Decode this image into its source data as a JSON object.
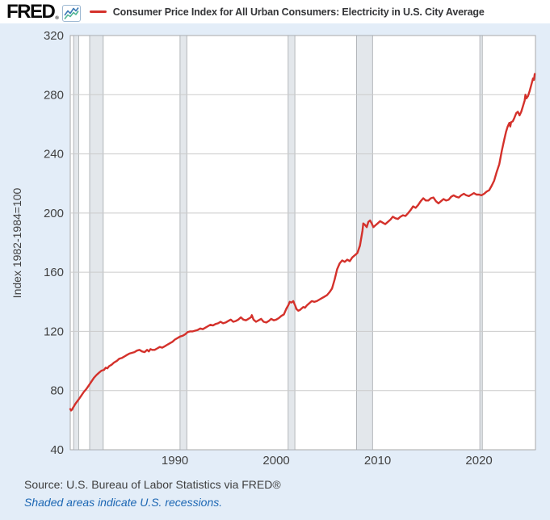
{
  "header": {
    "logo_text": "FRED",
    "logo_reg": "®",
    "series_title": "Consumer Price Index for All Urban Consumers: Electricity in U.S. City Average"
  },
  "footer": {
    "source": "Source: U.S. Bureau of Labor Statistics via FRED®",
    "recession_note": "Shaded areas indicate U.S. recessions."
  },
  "colors": {
    "background": "#e3edf8",
    "header_background": "#ffffff",
    "line_red": "#d4312b",
    "plot_border": "#a9a9a9",
    "gridline": "#cbcbcb",
    "recession_fill": "#e3e7eb",
    "recession_edge": "#a4a8ac",
    "note_blue": "#1b66b3",
    "icon_blue": "#3d7ab5",
    "icon_green": "#52b695"
  },
  "chart_data": {
    "type": "line",
    "title": "Consumer Price Index for All Urban Consumers: Electricity in U.S. City Average",
    "xlabel": "",
    "ylabel": "Index 1982-1984=100",
    "x_ticks": [
      1990,
      2000,
      2010,
      2020
    ],
    "y_ticks": [
      40,
      80,
      120,
      160,
      200,
      240,
      280,
      320
    ],
    "x_range": [
      1979.67,
      2025.57
    ],
    "y_range": [
      40,
      320
    ],
    "grid": "horizontal-only",
    "legend_position": "top",
    "recessions": [
      [
        1980.0,
        1980.5
      ],
      [
        1981.58,
        1982.92
      ],
      [
        1990.5,
        1991.17
      ],
      [
        2001.17,
        2001.83
      ],
      [
        2007.92,
        2009.5
      ],
      [
        2020.08,
        2020.33
      ]
    ],
    "series": [
      {
        "name": "Consumer Price Index for All Urban Consumers: Electricity in U.S. City Average",
        "color": "#d4312b",
        "points": [
          [
            1979.67,
            67.5
          ],
          [
            1979.75,
            66.5
          ],
          [
            1979.83,
            67
          ],
          [
            1980,
            69
          ],
          [
            1980.17,
            71
          ],
          [
            1980.33,
            72.5
          ],
          [
            1980.5,
            74
          ],
          [
            1980.75,
            76.5
          ],
          [
            1981,
            79
          ],
          [
            1981.25,
            81
          ],
          [
            1981.5,
            83.5
          ],
          [
            1981.75,
            86
          ],
          [
            1982,
            88.5
          ],
          [
            1982.25,
            90.5
          ],
          [
            1982.5,
            92
          ],
          [
            1982.75,
            93.5
          ],
          [
            1983,
            94
          ],
          [
            1983.17,
            95.5
          ],
          [
            1983.33,
            95
          ],
          [
            1983.5,
            96.5
          ],
          [
            1983.75,
            97.5
          ],
          [
            1984,
            99
          ],
          [
            1984.25,
            100
          ],
          [
            1984.5,
            101.5
          ],
          [
            1984.75,
            102
          ],
          [
            1985,
            103
          ],
          [
            1985.25,
            104
          ],
          [
            1985.5,
            105
          ],
          [
            1985.75,
            105.5
          ],
          [
            1986,
            106
          ],
          [
            1986.25,
            107
          ],
          [
            1986.5,
            107.5
          ],
          [
            1986.75,
            106.5
          ],
          [
            1987,
            106
          ],
          [
            1987.25,
            107.5
          ],
          [
            1987.42,
            106.5
          ],
          [
            1987.58,
            108
          ],
          [
            1987.75,
            107.5
          ],
          [
            1988,
            107.5
          ],
          [
            1988.25,
            108.5
          ],
          [
            1988.5,
            109.5
          ],
          [
            1988.75,
            109
          ],
          [
            1989,
            110
          ],
          [
            1989.25,
            111
          ],
          [
            1989.5,
            112
          ],
          [
            1989.75,
            113
          ],
          [
            1990,
            114.5
          ],
          [
            1990.25,
            115.5
          ],
          [
            1990.5,
            116.5
          ],
          [
            1990.75,
            117
          ],
          [
            1991,
            118
          ],
          [
            1991.25,
            119.5
          ],
          [
            1991.5,
            120
          ],
          [
            1991.75,
            120
          ],
          [
            1992,
            120.5
          ],
          [
            1992.25,
            121
          ],
          [
            1992.5,
            122
          ],
          [
            1992.75,
            121.5
          ],
          [
            1993,
            122.5
          ],
          [
            1993.25,
            123.5
          ],
          [
            1993.5,
            124.5
          ],
          [
            1993.75,
            124
          ],
          [
            1994,
            125
          ],
          [
            1994.25,
            125.5
          ],
          [
            1994.5,
            126.5
          ],
          [
            1994.75,
            125.5
          ],
          [
            1995,
            126
          ],
          [
            1995.25,
            127
          ],
          [
            1995.5,
            128
          ],
          [
            1995.75,
            126.5
          ],
          [
            1996,
            127
          ],
          [
            1996.25,
            128
          ],
          [
            1996.5,
            129.5
          ],
          [
            1996.75,
            128
          ],
          [
            1997,
            127.5
          ],
          [
            1997.25,
            128.5
          ],
          [
            1997.5,
            129.5
          ],
          [
            1997.58,
            131
          ],
          [
            1997.75,
            128
          ],
          [
            1998,
            126.5
          ],
          [
            1998.25,
            127.5
          ],
          [
            1998.5,
            128.5
          ],
          [
            1998.75,
            126.5
          ],
          [
            1999,
            126
          ],
          [
            1999.25,
            127
          ],
          [
            1999.5,
            128.5
          ],
          [
            1999.75,
            127.5
          ],
          [
            2000,
            128
          ],
          [
            2000.25,
            129
          ],
          [
            2000.5,
            130.5
          ],
          [
            2000.75,
            131.5
          ],
          [
            2001,
            135.5
          ],
          [
            2001.17,
            137.5
          ],
          [
            2001.33,
            140
          ],
          [
            2001.5,
            139.5
          ],
          [
            2001.67,
            140.5
          ],
          [
            2001.83,
            138
          ],
          [
            2002,
            135
          ],
          [
            2002.17,
            134
          ],
          [
            2002.33,
            134.5
          ],
          [
            2002.5,
            135.5
          ],
          [
            2002.67,
            136.5
          ],
          [
            2002.83,
            136
          ],
          [
            2003,
            137.5
          ],
          [
            2003.25,
            139
          ],
          [
            2003.5,
            140.5
          ],
          [
            2003.75,
            140
          ],
          [
            2004,
            140.5
          ],
          [
            2004.25,
            141.5
          ],
          [
            2004.5,
            142.5
          ],
          [
            2004.75,
            143.5
          ],
          [
            2005,
            144.5
          ],
          [
            2005.25,
            146.5
          ],
          [
            2005.5,
            149
          ],
          [
            2005.75,
            155
          ],
          [
            2006,
            162
          ],
          [
            2006.25,
            166
          ],
          [
            2006.5,
            168
          ],
          [
            2006.75,
            167
          ],
          [
            2007,
            168.5
          ],
          [
            2007.25,
            167.5
          ],
          [
            2007.5,
            170
          ],
          [
            2007.75,
            171.5
          ],
          [
            2008,
            173
          ],
          [
            2008.25,
            178
          ],
          [
            2008.5,
            188
          ],
          [
            2008.58,
            193
          ],
          [
            2008.75,
            192
          ],
          [
            2008.92,
            190.5
          ],
          [
            2009.08,
            194
          ],
          [
            2009.25,
            195
          ],
          [
            2009.42,
            193
          ],
          [
            2009.58,
            190.5
          ],
          [
            2009.75,
            191.5
          ],
          [
            2010,
            193
          ],
          [
            2010.25,
            194.5
          ],
          [
            2010.5,
            193.5
          ],
          [
            2010.75,
            192.5
          ],
          [
            2011,
            194
          ],
          [
            2011.25,
            195.5
          ],
          [
            2011.5,
            197.5
          ],
          [
            2011.75,
            196.5
          ],
          [
            2012,
            196
          ],
          [
            2012.25,
            197.5
          ],
          [
            2012.5,
            198.5
          ],
          [
            2012.75,
            198
          ],
          [
            2013,
            200
          ],
          [
            2013.25,
            202
          ],
          [
            2013.5,
            204.5
          ],
          [
            2013.75,
            203.5
          ],
          [
            2014,
            205.5
          ],
          [
            2014.25,
            208
          ],
          [
            2014.5,
            210
          ],
          [
            2014.75,
            208.5
          ],
          [
            2015,
            208.5
          ],
          [
            2015.25,
            210
          ],
          [
            2015.5,
            210.5
          ],
          [
            2015.75,
            208
          ],
          [
            2016,
            206.5
          ],
          [
            2016.25,
            208
          ],
          [
            2016.5,
            209.5
          ],
          [
            2016.75,
            208.5
          ],
          [
            2017,
            209
          ],
          [
            2017.25,
            211
          ],
          [
            2017.5,
            212
          ],
          [
            2017.75,
            211
          ],
          [
            2018,
            210.5
          ],
          [
            2018.25,
            212
          ],
          [
            2018.5,
            213
          ],
          [
            2018.75,
            212
          ],
          [
            2019,
            211.5
          ],
          [
            2019.25,
            212.5
          ],
          [
            2019.5,
            213.5
          ],
          [
            2019.75,
            212.5
          ],
          [
            2020,
            212.5
          ],
          [
            2020.25,
            212
          ],
          [
            2020.5,
            213
          ],
          [
            2020.75,
            214.5
          ],
          [
            2021,
            215.5
          ],
          [
            2021.25,
            218.5
          ],
          [
            2021.5,
            222
          ],
          [
            2021.75,
            228
          ],
          [
            2022,
            233
          ],
          [
            2022.25,
            242
          ],
          [
            2022.5,
            250
          ],
          [
            2022.67,
            255
          ],
          [
            2022.83,
            258.5
          ],
          [
            2023,
            261
          ],
          [
            2023.08,
            258.5
          ],
          [
            2023.17,
            261.5
          ],
          [
            2023.33,
            262
          ],
          [
            2023.5,
            264.5
          ],
          [
            2023.67,
            267.5
          ],
          [
            2023.83,
            268.5
          ],
          [
            2024,
            266
          ],
          [
            2024.17,
            268.5
          ],
          [
            2024.33,
            272
          ],
          [
            2024.5,
            276
          ],
          [
            2024.58,
            280
          ],
          [
            2024.67,
            277.5
          ],
          [
            2024.83,
            279
          ],
          [
            2025,
            282.5
          ],
          [
            2025.17,
            287
          ],
          [
            2025.33,
            291
          ],
          [
            2025.42,
            290
          ],
          [
            2025.5,
            294
          ]
        ]
      }
    ]
  }
}
